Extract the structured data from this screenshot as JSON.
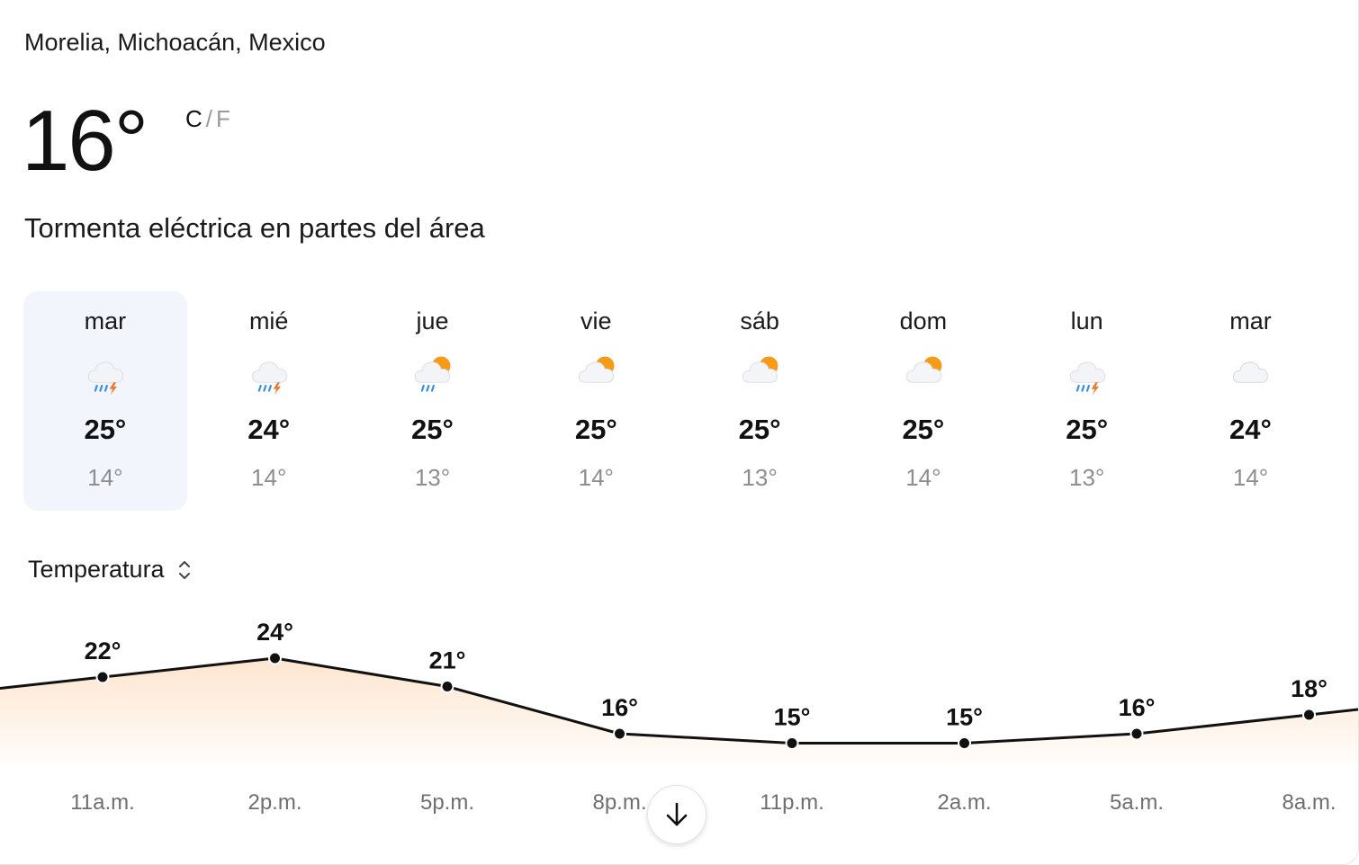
{
  "location": "Morelia, Michoacán, Mexico",
  "current": {
    "temperature": "16°",
    "unit_c": "C",
    "unit_separator": "/",
    "unit_f": "F",
    "condition": "Tormenta eléctrica en partes del área"
  },
  "forecast": [
    {
      "day": "mar",
      "high": "25°",
      "low": "14°",
      "icon": "thunderstorm-icon",
      "selected": true
    },
    {
      "day": "mié",
      "high": "24°",
      "low": "14°",
      "icon": "thunderstorm-icon",
      "selected": false
    },
    {
      "day": "jue",
      "high": "25°",
      "low": "13°",
      "icon": "sun-thunderstorm-icon",
      "selected": false
    },
    {
      "day": "vie",
      "high": "25°",
      "low": "14°",
      "icon": "partly-cloudy-icon",
      "selected": false
    },
    {
      "day": "sáb",
      "high": "25°",
      "low": "13°",
      "icon": "partly-cloudy-icon",
      "selected": false
    },
    {
      "day": "dom",
      "high": "25°",
      "low": "14°",
      "icon": "partly-cloudy-icon",
      "selected": false
    },
    {
      "day": "lun",
      "high": "25°",
      "low": "13°",
      "icon": "thunderstorm-icon",
      "selected": false
    },
    {
      "day": "mar",
      "high": "24°",
      "low": "14°",
      "icon": "cloudy-icon",
      "selected": false
    }
  ],
  "metric_selector": {
    "label": "Temperatura"
  },
  "chart_data": {
    "type": "area",
    "title": "",
    "xlabel": "",
    "ylabel": "",
    "categories": [
      "11a.m.",
      "2p.m.",
      "5p.m.",
      "8p.m.",
      "11p.m.",
      "2a.m.",
      "5a.m.",
      "8a.m."
    ],
    "values": [
      22,
      24,
      21,
      16,
      15,
      15,
      16,
      18
    ],
    "value_labels": [
      "22°",
      "24°",
      "21°",
      "16°",
      "15°",
      "15°",
      "16°",
      "18°"
    ],
    "grid": false,
    "colors": {
      "line": "#111111",
      "fill_top": "#fde5cf",
      "fill_bottom": "#ffffff"
    }
  },
  "colors": {
    "selected_day_bg": "#f3f5fd",
    "muted_text": "#8e8e8e",
    "sun": "#f79a17",
    "rain": "#3a8ee6",
    "bolt": "#f2792c"
  }
}
